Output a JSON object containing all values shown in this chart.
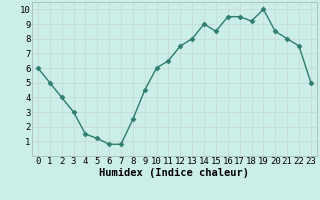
{
  "x": [
    0,
    1,
    2,
    3,
    4,
    5,
    6,
    7,
    8,
    9,
    10,
    11,
    12,
    13,
    14,
    15,
    16,
    17,
    18,
    19,
    20,
    21,
    22,
    23
  ],
  "y": [
    6.0,
    5.0,
    4.0,
    3.0,
    1.5,
    1.2,
    0.8,
    0.8,
    2.5,
    4.5,
    6.0,
    6.5,
    7.5,
    8.0,
    9.0,
    8.5,
    9.5,
    9.5,
    9.2,
    10.0,
    8.5,
    8.0,
    7.5,
    5.0
  ],
  "line_color": "#2e7d6e",
  "marker": "D",
  "marker_size": 2.5,
  "line_width": 1.0,
  "xlabel": "Humidex (Indice chaleur)",
  "xlim": [
    -0.5,
    23.5
  ],
  "ylim": [
    0,
    10.5
  ],
  "yticks": [
    1,
    2,
    3,
    4,
    5,
    6,
    7,
    8,
    9,
    10
  ],
  "xticks": [
    0,
    1,
    2,
    3,
    4,
    5,
    6,
    7,
    8,
    9,
    10,
    11,
    12,
    13,
    14,
    15,
    16,
    17,
    18,
    19,
    20,
    21,
    22,
    23
  ],
  "xtick_labels": [
    "0",
    "1",
    "2",
    "3",
    "4",
    "5",
    "6",
    "7",
    "8",
    "9",
    "10",
    "11",
    "12",
    "13",
    "14",
    "15",
    "16",
    "17",
    "18",
    "19",
    "20",
    "21",
    "22",
    "23"
  ],
  "background_color": "#cceee8",
  "grid_color": "#c8ddd9",
  "tick_fontsize": 6.5,
  "xlabel_fontsize": 7.5
}
